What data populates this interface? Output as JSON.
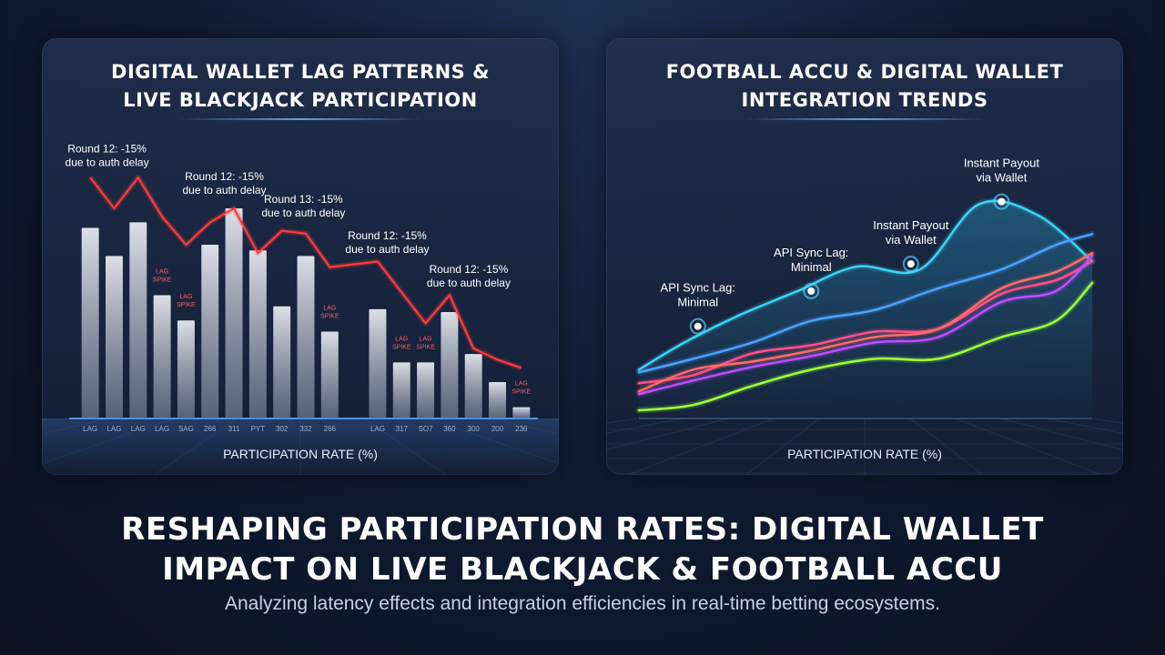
{
  "page": {
    "main_title": "RESHAPING PARTICIPATION RATES: DIGITAL WALLET\nIMPACT ON LIVE BLACKJACK & FOOTBALL ACCU",
    "subtitle": "Analyzing latency effects and integration efficiencies in real-time betting ecosystems."
  },
  "chart_data": [
    {
      "type": "bar",
      "title": "DIGITAL WALLET LAG PATTERNS &\nLIVE BLACKJACK PARTICIPATION",
      "xlabel": "PARTICIPATION RATE (%)",
      "ylabel": "",
      "ylim": [
        0,
        100
      ],
      "grid": false,
      "categories": [
        "LAG",
        "LAG",
        "LAG",
        "LAG",
        "SAG",
        "266",
        "311",
        "PYT",
        "302",
        "332",
        "266",
        "",
        "LAG",
        "317",
        "SO7",
        "360",
        "300",
        "200",
        "236"
      ],
      "bars": [
        {
          "index": 0,
          "value": 68
        },
        {
          "index": 1,
          "value": 58
        },
        {
          "index": 2,
          "value": 70
        },
        {
          "index": 3,
          "value": 44
        },
        {
          "index": 4,
          "value": 35
        },
        {
          "index": 5,
          "value": 62
        },
        {
          "index": 6,
          "value": 75
        },
        {
          "index": 7,
          "value": 60
        },
        {
          "index": 8,
          "value": 40
        },
        {
          "index": 9,
          "value": 58
        },
        {
          "index": 10,
          "value": 31
        },
        {
          "index": 12,
          "value": 39
        },
        {
          "index": 13,
          "value": 20
        },
        {
          "index": 14,
          "value": 20
        },
        {
          "index": 15,
          "value": 38
        },
        {
          "index": 16,
          "value": 23
        },
        {
          "index": 17,
          "value": 13
        },
        {
          "index": 18,
          "value": 4
        }
      ],
      "lag_spikes": [
        3,
        4,
        10,
        13,
        14,
        18
      ],
      "lag_spike_label": "LAG SPIKE",
      "line": {
        "color": "#ff3b3b",
        "points": [
          {
            "index": 0,
            "value": 86
          },
          {
            "index": 1,
            "value": 75
          },
          {
            "index": 2,
            "value": 86
          },
          {
            "index": 3,
            "value": 72
          },
          {
            "index": 4,
            "value": 62
          },
          {
            "index": 5,
            "value": 70
          },
          {
            "index": 6,
            "value": 75
          },
          {
            "index": 7,
            "value": 59
          },
          {
            "index": 8,
            "value": 67
          },
          {
            "index": 9,
            "value": 66
          },
          {
            "index": 10,
            "value": 54
          },
          {
            "index": 12,
            "value": 56
          },
          {
            "index": 13,
            "value": 45
          },
          {
            "index": 14,
            "value": 34
          },
          {
            "index": 15,
            "value": 44
          },
          {
            "index": 16,
            "value": 25
          },
          {
            "index": 17,
            "value": 21
          },
          {
            "index": 18,
            "value": 18
          }
        ]
      },
      "annotations": [
        {
          "index": 0.7,
          "value": 95,
          "text": [
            "Round 12: -15%",
            "due to auth delay"
          ]
        },
        {
          "index": 5.6,
          "value": 85,
          "text": [
            "Round 12: -15%",
            "due to auth delay"
          ]
        },
        {
          "index": 8.9,
          "value": 77,
          "text": [
            "Round 13: -15%",
            "due to auth delay"
          ]
        },
        {
          "index": 12.4,
          "value": 64,
          "text": [
            "Round 12: -15%",
            "due to auth delay"
          ]
        },
        {
          "index": 15.8,
          "value": 52,
          "text": [
            "Round 12: -15%",
            "due to auth delay"
          ]
        }
      ]
    },
    {
      "type": "line",
      "title": "FOOTBALL ACCU & DIGITAL WALLET\nINTEGRATION TRENDS",
      "xlabel": "PARTICIPATION RATE (%)",
      "ylabel": "",
      "xlim": [
        0,
        100
      ],
      "ylim": [
        0,
        100
      ],
      "grid": false,
      "series": [
        {
          "color": "#39d3f5",
          "x": [
            0,
            10,
            22,
            35,
            48,
            62,
            75,
            88,
            100
          ],
          "y": [
            18,
            28,
            38,
            47,
            56,
            55,
            79,
            75,
            58
          ]
        },
        {
          "color": "#4aa0ff",
          "x": [
            0,
            12,
            25,
            38,
            52,
            66,
            80,
            92,
            100
          ],
          "y": [
            17,
            22,
            28,
            36,
            40,
            48,
            55,
            64,
            68
          ]
        },
        {
          "color": "#ff4f8a",
          "x": [
            0,
            12,
            25,
            38,
            52,
            66,
            80,
            92,
            100
          ],
          "y": [
            13,
            16,
            24,
            27,
            32,
            33,
            46,
            51,
            58
          ]
        },
        {
          "color": "#c04bff",
          "x": [
            0,
            12,
            25,
            38,
            52,
            66,
            80,
            92,
            100
          ],
          "y": [
            9,
            14,
            19,
            23,
            28,
            30,
            43,
            47,
            60
          ]
        },
        {
          "color": "#ff6b6b",
          "x": [
            0,
            12,
            25,
            38,
            52,
            66,
            80,
            92,
            100
          ],
          "y": [
            10,
            18,
            21,
            25,
            30,
            33,
            48,
            54,
            61
          ]
        },
        {
          "color": "#9cff3a",
          "x": [
            0,
            12,
            25,
            38,
            52,
            66,
            80,
            92,
            100
          ],
          "y": [
            3,
            5,
            12,
            18,
            22,
            22,
            30,
            36,
            50
          ]
        }
      ],
      "markers": [
        {
          "x": 13,
          "y": 34,
          "text": [
            "API Sync Lag:",
            "Minimal"
          ]
        },
        {
          "x": 38,
          "y": 47,
          "text": [
            "API Sync Lag:",
            "Minimal"
          ]
        },
        {
          "x": 60,
          "y": 57,
          "text": [
            "Instant Payout",
            "via Wallet"
          ]
        },
        {
          "x": 80,
          "y": 80,
          "text": [
            "Instant Payout",
            "via Wallet"
          ]
        }
      ]
    }
  ]
}
